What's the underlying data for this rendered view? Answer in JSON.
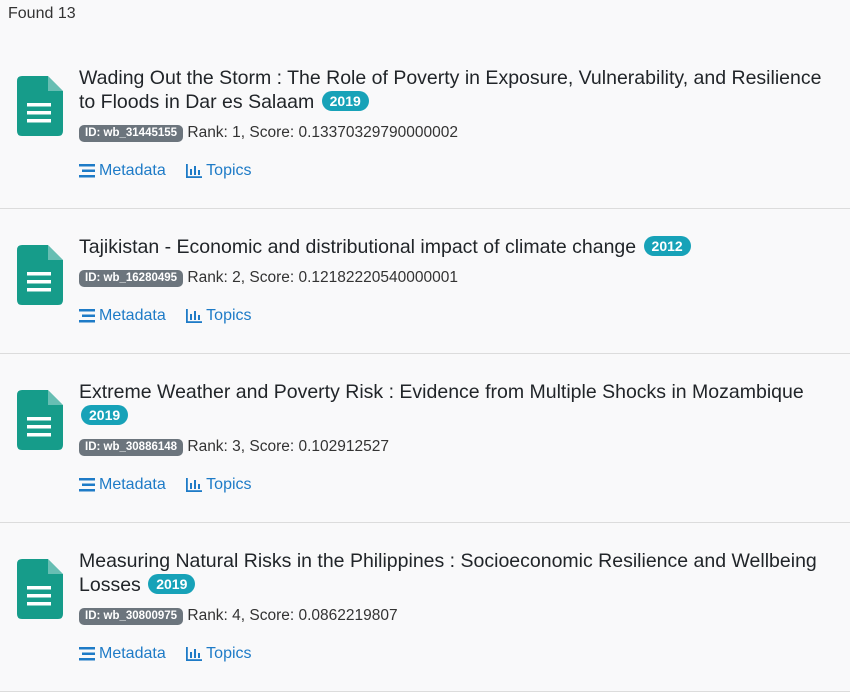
{
  "header": {
    "found_text": "Found 13"
  },
  "results": [
    {
      "title": "Wading Out the Storm : The Role of Poverty in Exposure, Vulnerability, and Resilience to Floods in Dar es Salaam",
      "year": "2019",
      "id": "ID: wb_31445155",
      "rank_score": "Rank: 1, Score: 0.13370329790000002",
      "metadata_label": "Metadata",
      "topics_label": "Topics"
    },
    {
      "title": "Tajikistan - Economic and distributional impact of climate change",
      "year": "2012",
      "id": "ID: wb_16280495",
      "rank_score": "Rank: 2, Score: 0.12182220540000001",
      "metadata_label": "Metadata",
      "topics_label": "Topics"
    },
    {
      "title": "Extreme Weather and Poverty Risk : Evidence from Multiple Shocks in Mozambique",
      "year": "2019",
      "id": "ID: wb_30886148",
      "rank_score": "Rank: 3, Score: 0.102912527",
      "metadata_label": "Metadata",
      "topics_label": "Topics"
    },
    {
      "title": "Measuring Natural Risks in the Philippines : Socioeconomic Resilience and Wellbeing Losses",
      "year": "2019",
      "id": "ID: wb_30800975",
      "rank_score": "Rank: 4, Score: 0.0862219807",
      "metadata_label": "Metadata",
      "topics_label": "Topics"
    }
  ],
  "icons": {
    "document": "document-icon",
    "metadata": "list-icon",
    "topics": "bar-chart-icon"
  },
  "colors": {
    "document_icon": "#169c8a",
    "year_badge": "#17a2b8",
    "id_badge": "#6c757d",
    "link": "#1e7bc7"
  }
}
